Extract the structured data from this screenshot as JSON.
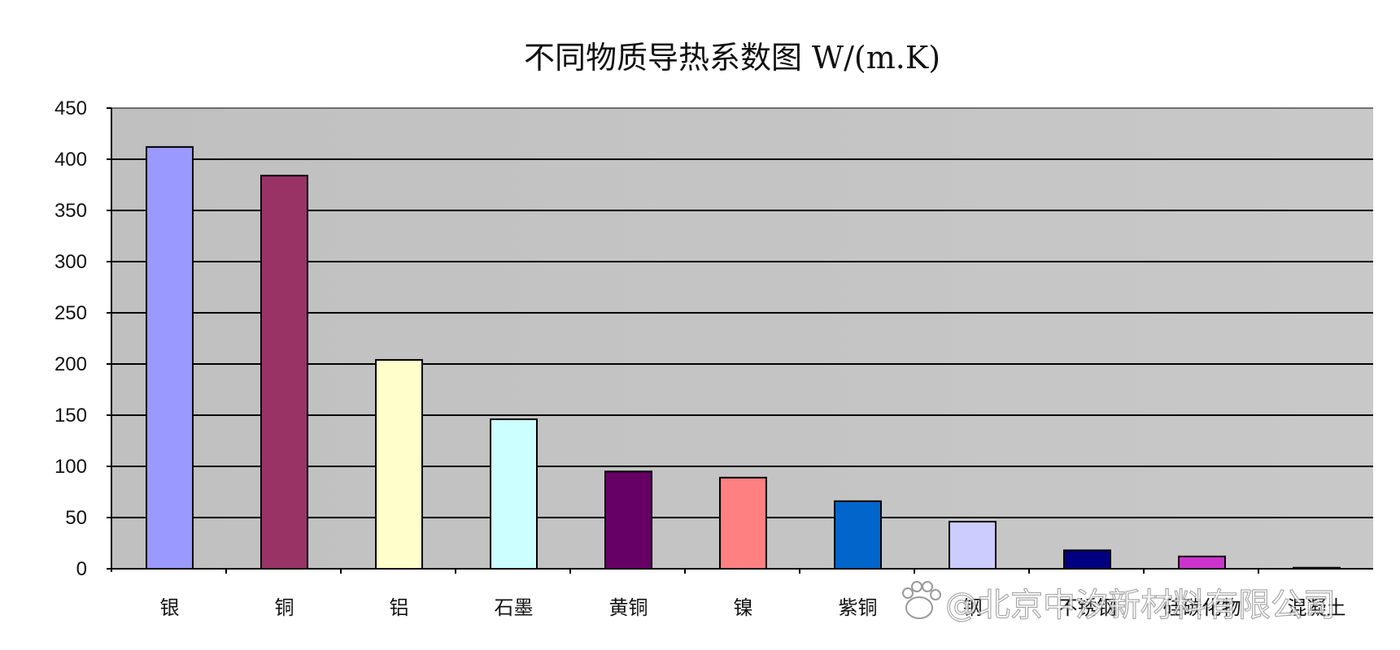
{
  "chart_data": {
    "type": "bar",
    "title": "不同物质导热系数图 W/(m.K)",
    "xlabel": "",
    "ylabel": "",
    "categories": [
      "银",
      "铜",
      "铝",
      "石墨",
      "黄铜",
      "镍",
      "紫铜",
      "钢",
      "不锈钢",
      "硅碳化物",
      "混凝土"
    ],
    "values": [
      412,
      384,
      204,
      146,
      95,
      89,
      66,
      46,
      18,
      12,
      1
    ],
    "ylim": [
      0,
      450
    ],
    "yticks": [
      "0",
      "50",
      "100",
      "150",
      "200",
      "250",
      "300",
      "350",
      "400",
      "450"
    ],
    "grid": true,
    "legend": "none"
  },
  "colors": {
    "plot_background": "#c0c0c0",
    "bars": [
      "#9999ff",
      "#993366",
      "#ffffcc",
      "#ccffff",
      "#660066",
      "#ff8080",
      "#0066cc",
      "#ccccff",
      "#000080",
      "#cc33cc",
      "#1a1a1a"
    ]
  },
  "watermark": {
    "text": "@北京中汐新材料有限公司",
    "icon": "paw-icon"
  }
}
